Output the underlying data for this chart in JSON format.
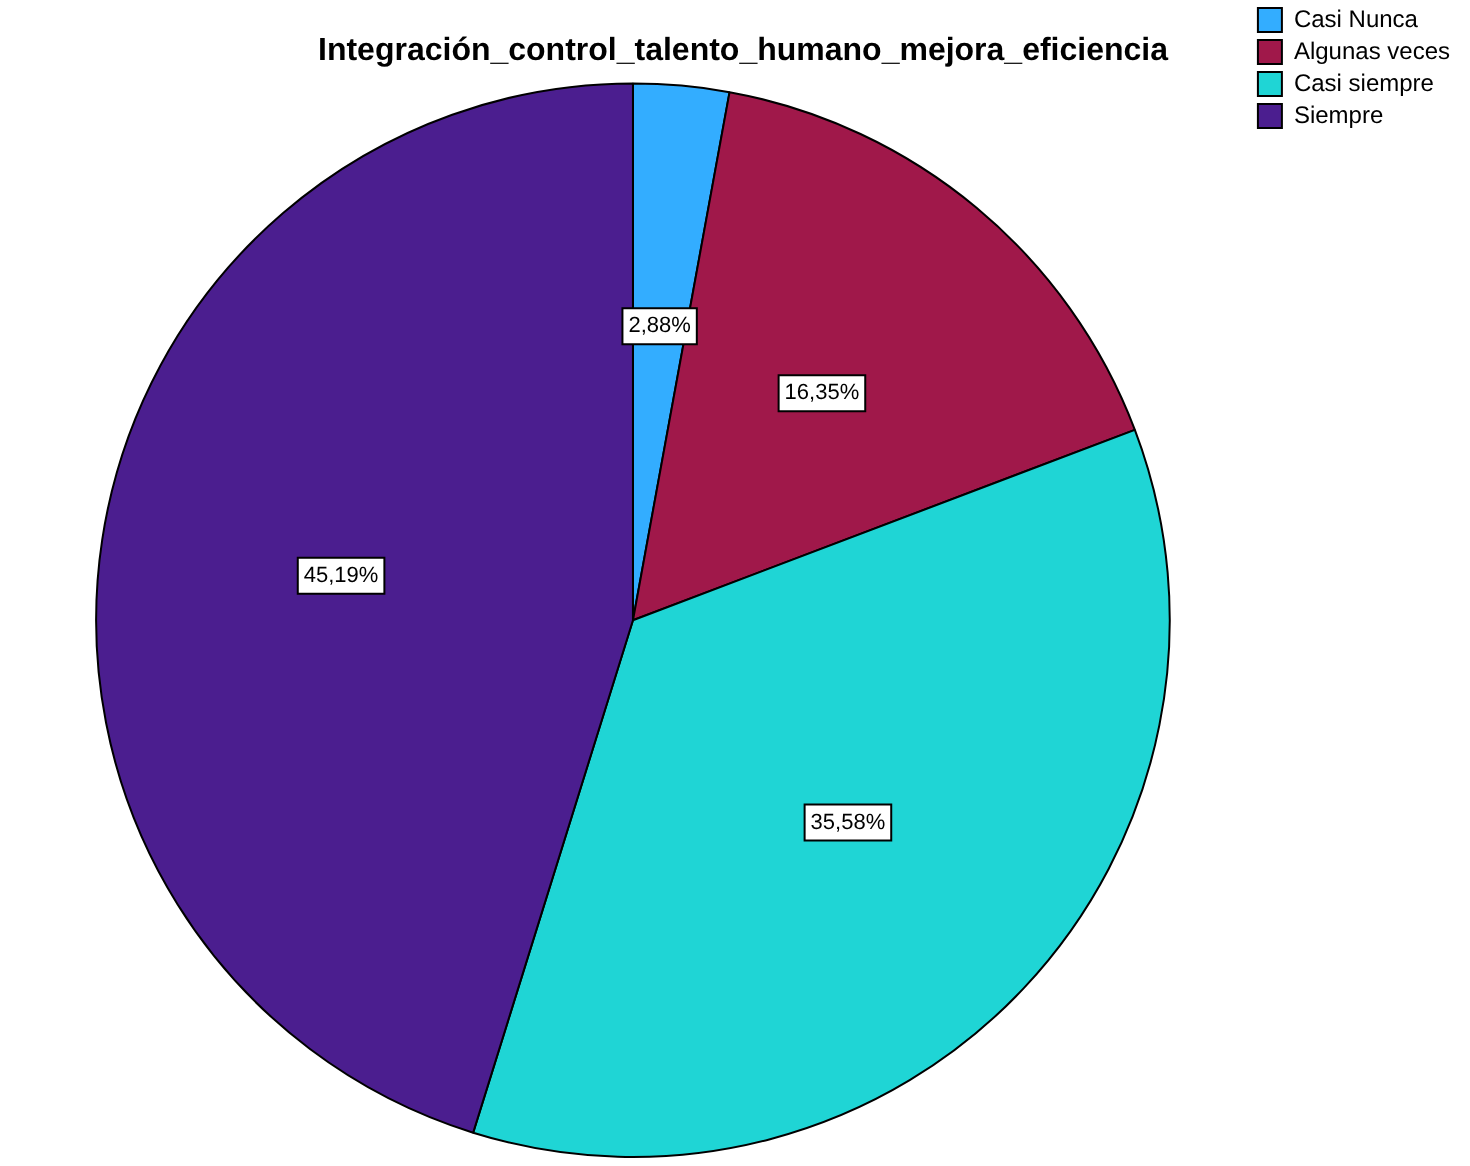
{
  "chart_data": {
    "type": "pie",
    "title": "Integración_control_talento_humano_mejora_eficiencia",
    "categories": [
      "Casi Nunca",
      "Algunas veces",
      "Casi siempre",
      "Siempre"
    ],
    "values": [
      2.88,
      16.35,
      35.58,
      45.19
    ],
    "value_labels": [
      "2,88%",
      "16,35%",
      "35,58%",
      "45,19%"
    ],
    "colors": [
      "#33adff",
      "#a0184a",
      "#1fd5d5",
      "#4b1e8f"
    ],
    "legend": "top right"
  }
}
